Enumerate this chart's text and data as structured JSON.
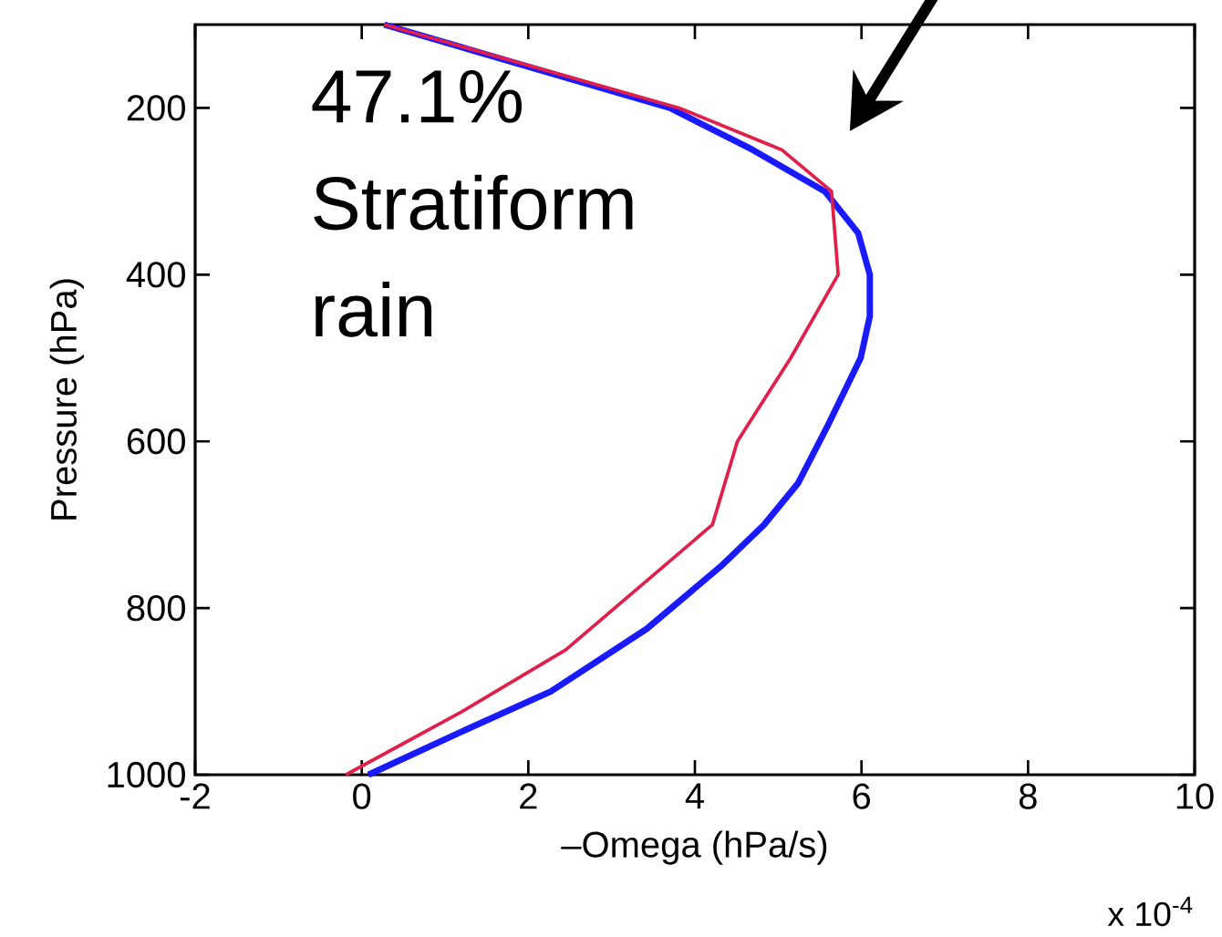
{
  "chart_data": {
    "type": "line",
    "xlabel": "–Omega (hPa/s)",
    "ylabel": "Pressure (hPa)",
    "annotations": [
      "47.1% Stratiform rain",
      "x 10$^{-4}$"
    ],
    "xlim": [
      -2,
      10
    ],
    "xticks": [
      -2,
      0,
      2,
      4,
      6,
      8,
      10
    ],
    "ylim": [
      1000,
      100
    ],
    "yticks": [
      200,
      400,
      600,
      800,
      1000
    ],
    "line_style": "solid",
    "marker": "none",
    "series": [
      {
        "color": "#1a1aff",
        "x": [
          0.27,
          3.7,
          4.69,
          5.56,
          5.96,
          6.1,
          6.1,
          5.99,
          5.6,
          5.24,
          4.83,
          4.31,
          3.42,
          2.27,
          1.16,
          0.08
        ],
        "values": [
          100,
          200,
          250,
          300,
          350,
          400,
          450,
          500,
          580,
          650,
          700,
          750,
          825,
          900,
          950,
          1000
        ]
      },
      {
        "color": "#e0204a",
        "x": [
          0.27,
          3.81,
          5.04,
          5.64,
          5.72,
          5.15,
          4.51,
          4.21,
          2.45,
          1.19,
          -0.19
        ],
        "values": [
          100,
          200,
          250,
          300,
          400,
          500,
          600,
          700,
          850,
          925,
          1000
        ]
      }
    ]
  }
}
